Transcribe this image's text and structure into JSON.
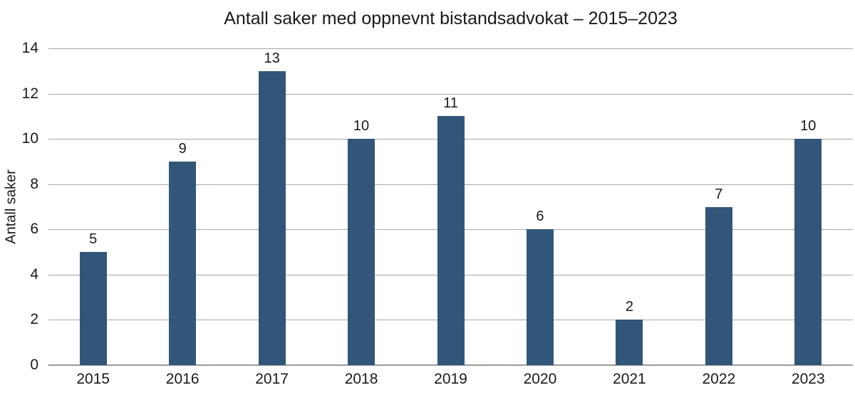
{
  "chart_data": {
    "type": "bar",
    "title": "Antall saker med oppnevnt bistandsadvokat – 2015–2023",
    "xlabel": "",
    "ylabel": "Antall saker",
    "categories": [
      "2015",
      "2016",
      "2017",
      "2018",
      "2019",
      "2020",
      "2021",
      "2022",
      "2023"
    ],
    "values": [
      5,
      9,
      13,
      10,
      11,
      6,
      2,
      7,
      10
    ],
    "ylim": [
      0,
      14
    ],
    "ytick_step": 2,
    "yticks": [
      0,
      2,
      4,
      6,
      8,
      10,
      12,
      14
    ],
    "grid": "horizontal",
    "legend": "none",
    "bar_color": "#315679",
    "grid_color": "#a6a6a6",
    "axis_color": "#9b9b9b",
    "text_color": "#1a1a1a",
    "background_color": "#ffffff"
  }
}
